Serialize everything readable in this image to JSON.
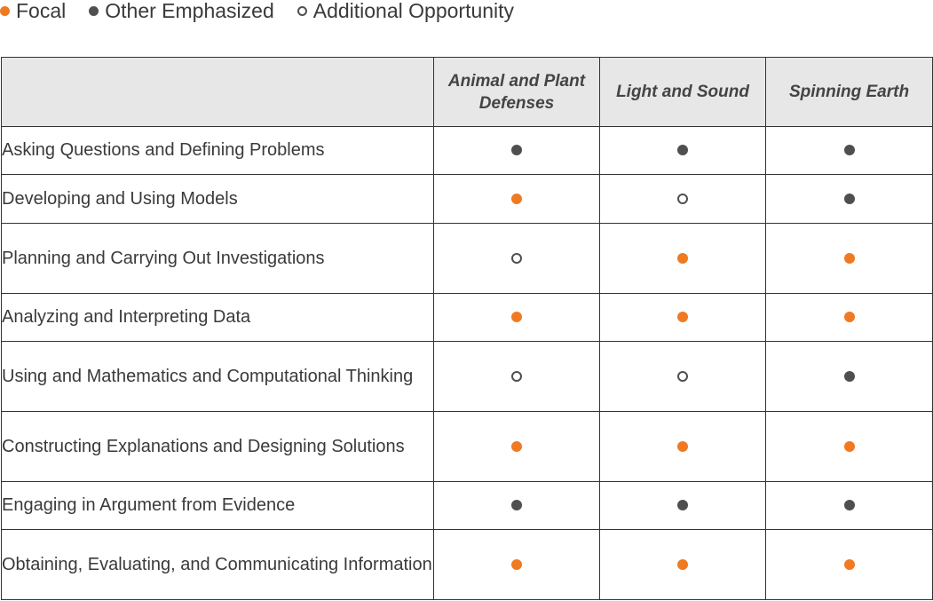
{
  "legend": [
    {
      "label": "Focal",
      "type": "focal"
    },
    {
      "label": "Other Emphasized",
      "type": "emph"
    },
    {
      "label": "Additional Opportunity",
      "type": "add"
    }
  ],
  "colors": {
    "focal": "#f07a22",
    "emphasized": "#4f4f4f",
    "header_bg": "#e7e7e7"
  },
  "table": {
    "columns": [
      "Animal and Plant Defenses",
      "Light and Sound",
      "Spinning Earth"
    ],
    "rows": [
      {
        "label": "Asking Questions and Defining Problems",
        "marks": [
          "emph",
          "emph",
          "emph"
        ]
      },
      {
        "label": "Developing and Using Models",
        "marks": [
          "focal",
          "add",
          "emph"
        ]
      },
      {
        "label": "Planning and Carrying Out Investigations",
        "marks": [
          "add",
          "focal",
          "focal"
        ]
      },
      {
        "label": "Analyzing and Interpreting Data",
        "marks": [
          "focal",
          "focal",
          "focal"
        ]
      },
      {
        "label": "Using and Mathematics and Computational Thinking",
        "marks": [
          "add",
          "add",
          "emph"
        ]
      },
      {
        "label": "Constructing Explanations and Designing Solutions",
        "marks": [
          "focal",
          "focal",
          "focal"
        ]
      },
      {
        "label": "Engaging in Argument from Evidence",
        "marks": [
          "emph",
          "emph",
          "emph"
        ]
      },
      {
        "label": "Obtaining, Evaluating, and Communicating Information",
        "marks": [
          "focal",
          "focal",
          "focal"
        ]
      }
    ]
  }
}
